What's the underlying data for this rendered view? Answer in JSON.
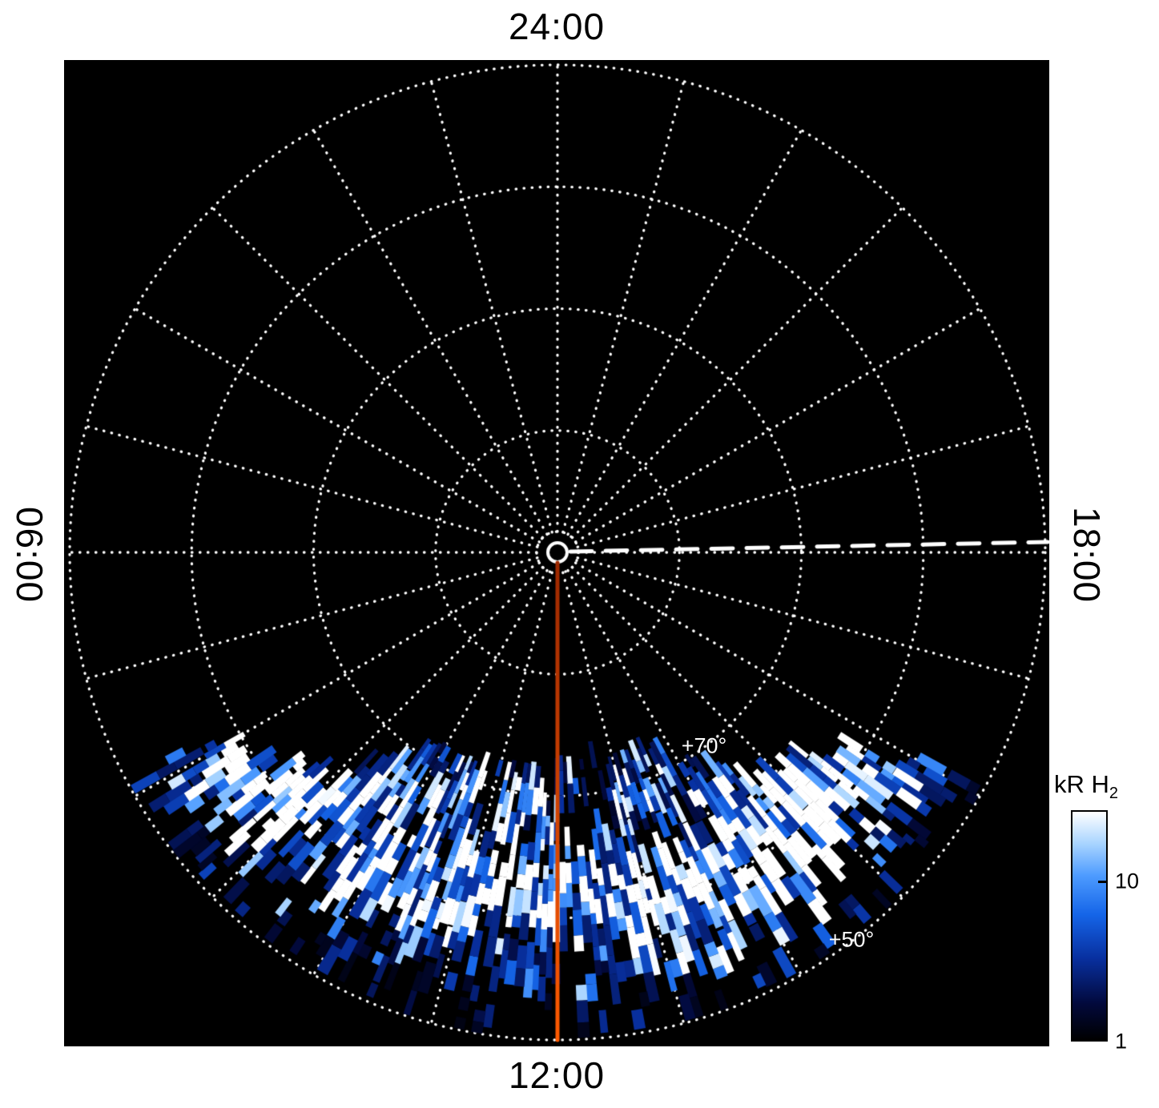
{
  "figure": {
    "page_bg": "#ffffff",
    "plot_bg": "#000000"
  },
  "time_labels": {
    "top": "24:00",
    "bottom": "12:00",
    "left": "06:00",
    "right": "18:00"
  },
  "latitude_labels": [
    {
      "text": "+70°"
    },
    {
      "text": "+50°"
    }
  ],
  "colorbar": {
    "title_main": "kR H",
    "title_sub": "2",
    "tick_labels": [
      "10",
      "1"
    ]
  },
  "chart_data": {
    "type": "heatmap",
    "projection": "polar",
    "quantity": "H2 auroral emission brightness",
    "unit": "kR",
    "scale": "log",
    "colorbar_range": [
      1,
      28
    ],
    "colorbar_ticks": [
      10,
      1
    ],
    "angular_axis": {
      "quantity": "local time",
      "labels": [
        "24:00",
        "18:00",
        "12:00",
        "06:00"
      ],
      "positions": [
        "top",
        "right",
        "bottom",
        "left"
      ],
      "spoke_interval_hours": 1
    },
    "radial_axis": {
      "quantity": "latitude",
      "pole_deg": 90,
      "outer_deg": 50,
      "circle_interval_deg": 10,
      "labeled_circles": [
        70,
        50
      ]
    },
    "grid": {
      "color": "#ffffff",
      "style": "dotted"
    },
    "markers": {
      "red_line": {
        "local_time": "12:00",
        "color_top": "#9c2800",
        "color_bottom": "#ff5a00"
      },
      "dashed_line": {
        "local_time": "18:00",
        "color": "#ffffff"
      },
      "pole_ring": {
        "color": "#ffffff"
      }
    },
    "colormap": [
      [
        0,
        "#000000"
      ],
      [
        0.16,
        "#02093c"
      ],
      [
        0.36,
        "#0830a0"
      ],
      [
        0.55,
        "#1565e8"
      ],
      [
        0.72,
        "#4d9bff"
      ],
      [
        0.86,
        "#a8d4ff"
      ],
      [
        1,
        "#ffffff"
      ]
    ],
    "emission_region": {
      "description": "Speckled H2 emission covering the observable disk below a straight terminator chord; brightest arc between +57 and +66 latitude, dense band just below the chord, sparser speckle toward +50",
      "chord_offset_frac": 0.419,
      "lat_range": [
        50,
        73
      ],
      "peak_band_lat": [
        57,
        66
      ],
      "bright_patches": [
        {
          "lat": 64,
          "local_time": 11.4
        },
        {
          "lat": 59,
          "local_time": 13.9
        },
        {
          "lat": 58,
          "local_time": 9.2
        },
        {
          "lat": 55,
          "local_time": 14.8
        }
      ]
    }
  }
}
